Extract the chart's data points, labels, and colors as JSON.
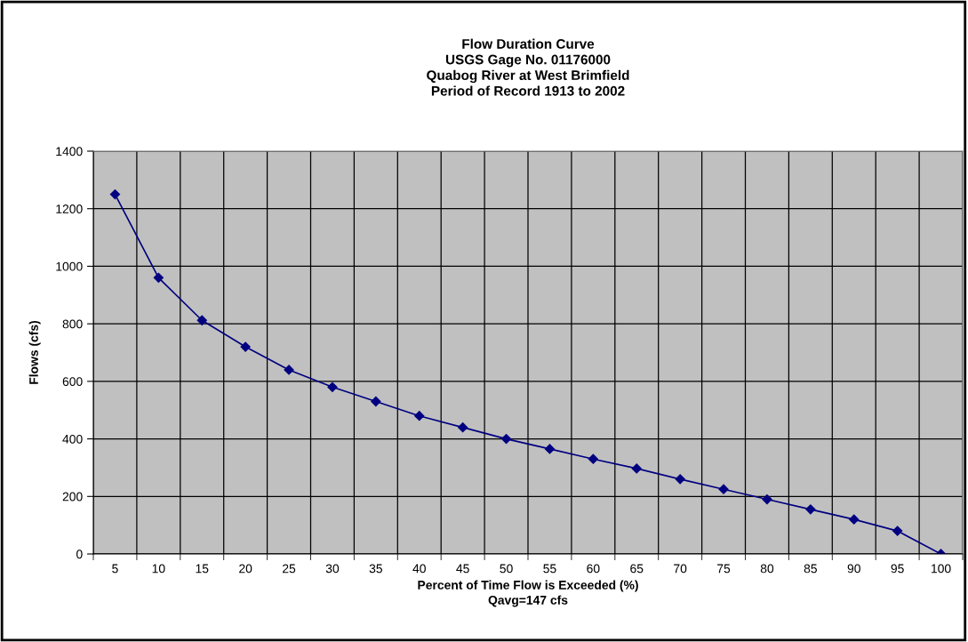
{
  "chart_data": {
    "type": "line",
    "title": "Flow Duration Curve\nUSGS Gage No. 01176000\nQuabog River at West Brimfield\nPeriod of Record 1913 to 2002",
    "xlabel": "Percent of Time Flow is Exceeded (%)\nQavg=147 cfs",
    "ylabel": "Flows (cfs)",
    "categories": [
      "5",
      "10",
      "15",
      "20",
      "25",
      "30",
      "35",
      "40",
      "45",
      "50",
      "55",
      "60",
      "65",
      "70",
      "75",
      "80",
      "85",
      "90",
      "95",
      "100"
    ],
    "series": [
      {
        "color": "#000080",
        "values": [
          1250,
          960,
          812,
          720,
          640,
          580,
          530,
          480,
          440,
          400,
          365,
          330,
          297,
          260,
          225,
          190,
          155,
          120,
          80,
          0
        ]
      }
    ],
    "ylim": [
      0,
      1400
    ],
    "yticks": [
      0,
      200,
      400,
      600,
      800,
      1000,
      1200,
      1400
    ],
    "grid": true,
    "marker": "diamond",
    "line_style": "solid"
  }
}
